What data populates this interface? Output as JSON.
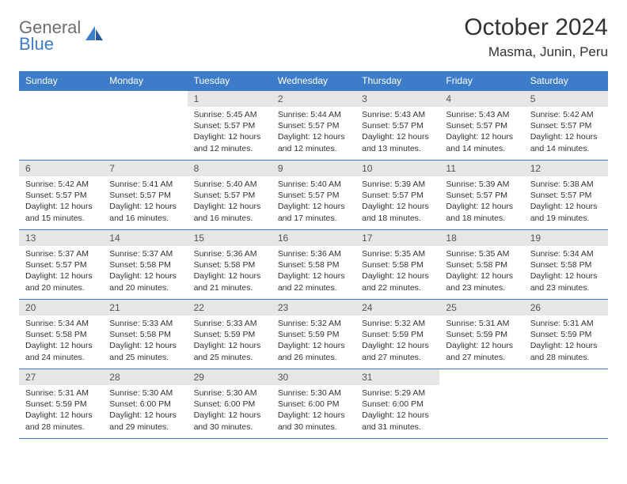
{
  "logo": {
    "text1": "General",
    "text2": "Blue"
  },
  "title": "October 2024",
  "location": "Masma, Junin, Peru",
  "colors": {
    "header_bg": "#3d7cc9",
    "header_fg": "#ffffff",
    "daynum_bg": "#e6e6e6",
    "border": "#3d7cc9",
    "text": "#333333",
    "logo_gray": "#6d6d6d",
    "logo_blue": "#3d7cc9"
  },
  "dayHeaders": [
    "Sunday",
    "Monday",
    "Tuesday",
    "Wednesday",
    "Thursday",
    "Friday",
    "Saturday"
  ],
  "weeks": [
    [
      null,
      null,
      {
        "n": "1",
        "sr": "5:45 AM",
        "ss": "5:57 PM",
        "dl": "12 hours and 12 minutes."
      },
      {
        "n": "2",
        "sr": "5:44 AM",
        "ss": "5:57 PM",
        "dl": "12 hours and 12 minutes."
      },
      {
        "n": "3",
        "sr": "5:43 AM",
        "ss": "5:57 PM",
        "dl": "12 hours and 13 minutes."
      },
      {
        "n": "4",
        "sr": "5:43 AM",
        "ss": "5:57 PM",
        "dl": "12 hours and 14 minutes."
      },
      {
        "n": "5",
        "sr": "5:42 AM",
        "ss": "5:57 PM",
        "dl": "12 hours and 14 minutes."
      }
    ],
    [
      {
        "n": "6",
        "sr": "5:42 AM",
        "ss": "5:57 PM",
        "dl": "12 hours and 15 minutes."
      },
      {
        "n": "7",
        "sr": "5:41 AM",
        "ss": "5:57 PM",
        "dl": "12 hours and 16 minutes."
      },
      {
        "n": "8",
        "sr": "5:40 AM",
        "ss": "5:57 PM",
        "dl": "12 hours and 16 minutes."
      },
      {
        "n": "9",
        "sr": "5:40 AM",
        "ss": "5:57 PM",
        "dl": "12 hours and 17 minutes."
      },
      {
        "n": "10",
        "sr": "5:39 AM",
        "ss": "5:57 PM",
        "dl": "12 hours and 18 minutes."
      },
      {
        "n": "11",
        "sr": "5:39 AM",
        "ss": "5:57 PM",
        "dl": "12 hours and 18 minutes."
      },
      {
        "n": "12",
        "sr": "5:38 AM",
        "ss": "5:57 PM",
        "dl": "12 hours and 19 minutes."
      }
    ],
    [
      {
        "n": "13",
        "sr": "5:37 AM",
        "ss": "5:57 PM",
        "dl": "12 hours and 20 minutes."
      },
      {
        "n": "14",
        "sr": "5:37 AM",
        "ss": "5:58 PM",
        "dl": "12 hours and 20 minutes."
      },
      {
        "n": "15",
        "sr": "5:36 AM",
        "ss": "5:58 PM",
        "dl": "12 hours and 21 minutes."
      },
      {
        "n": "16",
        "sr": "5:36 AM",
        "ss": "5:58 PM",
        "dl": "12 hours and 22 minutes."
      },
      {
        "n": "17",
        "sr": "5:35 AM",
        "ss": "5:58 PM",
        "dl": "12 hours and 22 minutes."
      },
      {
        "n": "18",
        "sr": "5:35 AM",
        "ss": "5:58 PM",
        "dl": "12 hours and 23 minutes."
      },
      {
        "n": "19",
        "sr": "5:34 AM",
        "ss": "5:58 PM",
        "dl": "12 hours and 23 minutes."
      }
    ],
    [
      {
        "n": "20",
        "sr": "5:34 AM",
        "ss": "5:58 PM",
        "dl": "12 hours and 24 minutes."
      },
      {
        "n": "21",
        "sr": "5:33 AM",
        "ss": "5:58 PM",
        "dl": "12 hours and 25 minutes."
      },
      {
        "n": "22",
        "sr": "5:33 AM",
        "ss": "5:59 PM",
        "dl": "12 hours and 25 minutes."
      },
      {
        "n": "23",
        "sr": "5:32 AM",
        "ss": "5:59 PM",
        "dl": "12 hours and 26 minutes."
      },
      {
        "n": "24",
        "sr": "5:32 AM",
        "ss": "5:59 PM",
        "dl": "12 hours and 27 minutes."
      },
      {
        "n": "25",
        "sr": "5:31 AM",
        "ss": "5:59 PM",
        "dl": "12 hours and 27 minutes."
      },
      {
        "n": "26",
        "sr": "5:31 AM",
        "ss": "5:59 PM",
        "dl": "12 hours and 28 minutes."
      }
    ],
    [
      {
        "n": "27",
        "sr": "5:31 AM",
        "ss": "5:59 PM",
        "dl": "12 hours and 28 minutes."
      },
      {
        "n": "28",
        "sr": "5:30 AM",
        "ss": "6:00 PM",
        "dl": "12 hours and 29 minutes."
      },
      {
        "n": "29",
        "sr": "5:30 AM",
        "ss": "6:00 PM",
        "dl": "12 hours and 30 minutes."
      },
      {
        "n": "30",
        "sr": "5:30 AM",
        "ss": "6:00 PM",
        "dl": "12 hours and 30 minutes."
      },
      {
        "n": "31",
        "sr": "5:29 AM",
        "ss": "6:00 PM",
        "dl": "12 hours and 31 minutes."
      },
      null,
      null
    ]
  ],
  "labels": {
    "sunrise": "Sunrise:",
    "sunset": "Sunset:",
    "daylight": "Daylight:"
  }
}
